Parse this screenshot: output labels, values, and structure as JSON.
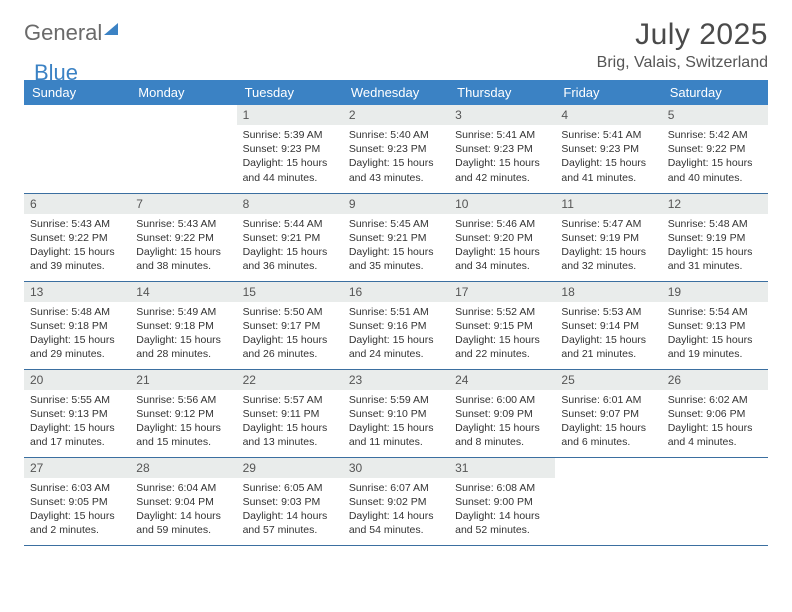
{
  "logo": {
    "part1": "General",
    "part2": "Blue"
  },
  "title": "July 2025",
  "location": "Brig, Valais, Switzerland",
  "colors": {
    "header_bg": "#3b82c4",
    "header_text": "#ffffff",
    "daynum_bg": "#e9eceb",
    "row_border": "#3b6fa0"
  },
  "weekdays": [
    "Sunday",
    "Monday",
    "Tuesday",
    "Wednesday",
    "Thursday",
    "Friday",
    "Saturday"
  ],
  "weeks": [
    [
      null,
      null,
      {
        "n": "1",
        "sunrise": "5:39 AM",
        "sunset": "9:23 PM",
        "daylight": "15 hours and 44 minutes."
      },
      {
        "n": "2",
        "sunrise": "5:40 AM",
        "sunset": "9:23 PM",
        "daylight": "15 hours and 43 minutes."
      },
      {
        "n": "3",
        "sunrise": "5:41 AM",
        "sunset": "9:23 PM",
        "daylight": "15 hours and 42 minutes."
      },
      {
        "n": "4",
        "sunrise": "5:41 AM",
        "sunset": "9:23 PM",
        "daylight": "15 hours and 41 minutes."
      },
      {
        "n": "5",
        "sunrise": "5:42 AM",
        "sunset": "9:22 PM",
        "daylight": "15 hours and 40 minutes."
      }
    ],
    [
      {
        "n": "6",
        "sunrise": "5:43 AM",
        "sunset": "9:22 PM",
        "daylight": "15 hours and 39 minutes."
      },
      {
        "n": "7",
        "sunrise": "5:43 AM",
        "sunset": "9:22 PM",
        "daylight": "15 hours and 38 minutes."
      },
      {
        "n": "8",
        "sunrise": "5:44 AM",
        "sunset": "9:21 PM",
        "daylight": "15 hours and 36 minutes."
      },
      {
        "n": "9",
        "sunrise": "5:45 AM",
        "sunset": "9:21 PM",
        "daylight": "15 hours and 35 minutes."
      },
      {
        "n": "10",
        "sunrise": "5:46 AM",
        "sunset": "9:20 PM",
        "daylight": "15 hours and 34 minutes."
      },
      {
        "n": "11",
        "sunrise": "5:47 AM",
        "sunset": "9:19 PM",
        "daylight": "15 hours and 32 minutes."
      },
      {
        "n": "12",
        "sunrise": "5:48 AM",
        "sunset": "9:19 PM",
        "daylight": "15 hours and 31 minutes."
      }
    ],
    [
      {
        "n": "13",
        "sunrise": "5:48 AM",
        "sunset": "9:18 PM",
        "daylight": "15 hours and 29 minutes."
      },
      {
        "n": "14",
        "sunrise": "5:49 AM",
        "sunset": "9:18 PM",
        "daylight": "15 hours and 28 minutes."
      },
      {
        "n": "15",
        "sunrise": "5:50 AM",
        "sunset": "9:17 PM",
        "daylight": "15 hours and 26 minutes."
      },
      {
        "n": "16",
        "sunrise": "5:51 AM",
        "sunset": "9:16 PM",
        "daylight": "15 hours and 24 minutes."
      },
      {
        "n": "17",
        "sunrise": "5:52 AM",
        "sunset": "9:15 PM",
        "daylight": "15 hours and 22 minutes."
      },
      {
        "n": "18",
        "sunrise": "5:53 AM",
        "sunset": "9:14 PM",
        "daylight": "15 hours and 21 minutes."
      },
      {
        "n": "19",
        "sunrise": "5:54 AM",
        "sunset": "9:13 PM",
        "daylight": "15 hours and 19 minutes."
      }
    ],
    [
      {
        "n": "20",
        "sunrise": "5:55 AM",
        "sunset": "9:13 PM",
        "daylight": "15 hours and 17 minutes."
      },
      {
        "n": "21",
        "sunrise": "5:56 AM",
        "sunset": "9:12 PM",
        "daylight": "15 hours and 15 minutes."
      },
      {
        "n": "22",
        "sunrise": "5:57 AM",
        "sunset": "9:11 PM",
        "daylight": "15 hours and 13 minutes."
      },
      {
        "n": "23",
        "sunrise": "5:59 AM",
        "sunset": "9:10 PM",
        "daylight": "15 hours and 11 minutes."
      },
      {
        "n": "24",
        "sunrise": "6:00 AM",
        "sunset": "9:09 PM",
        "daylight": "15 hours and 8 minutes."
      },
      {
        "n": "25",
        "sunrise": "6:01 AM",
        "sunset": "9:07 PM",
        "daylight": "15 hours and 6 minutes."
      },
      {
        "n": "26",
        "sunrise": "6:02 AM",
        "sunset": "9:06 PM",
        "daylight": "15 hours and 4 minutes."
      }
    ],
    [
      {
        "n": "27",
        "sunrise": "6:03 AM",
        "sunset": "9:05 PM",
        "daylight": "15 hours and 2 minutes."
      },
      {
        "n": "28",
        "sunrise": "6:04 AM",
        "sunset": "9:04 PM",
        "daylight": "14 hours and 59 minutes."
      },
      {
        "n": "29",
        "sunrise": "6:05 AM",
        "sunset": "9:03 PM",
        "daylight": "14 hours and 57 minutes."
      },
      {
        "n": "30",
        "sunrise": "6:07 AM",
        "sunset": "9:02 PM",
        "daylight": "14 hours and 54 minutes."
      },
      {
        "n": "31",
        "sunrise": "6:08 AM",
        "sunset": "9:00 PM",
        "daylight": "14 hours and 52 minutes."
      },
      null,
      null
    ]
  ],
  "labels": {
    "sunrise": "Sunrise:",
    "sunset": "Sunset:",
    "daylight": "Daylight:"
  }
}
